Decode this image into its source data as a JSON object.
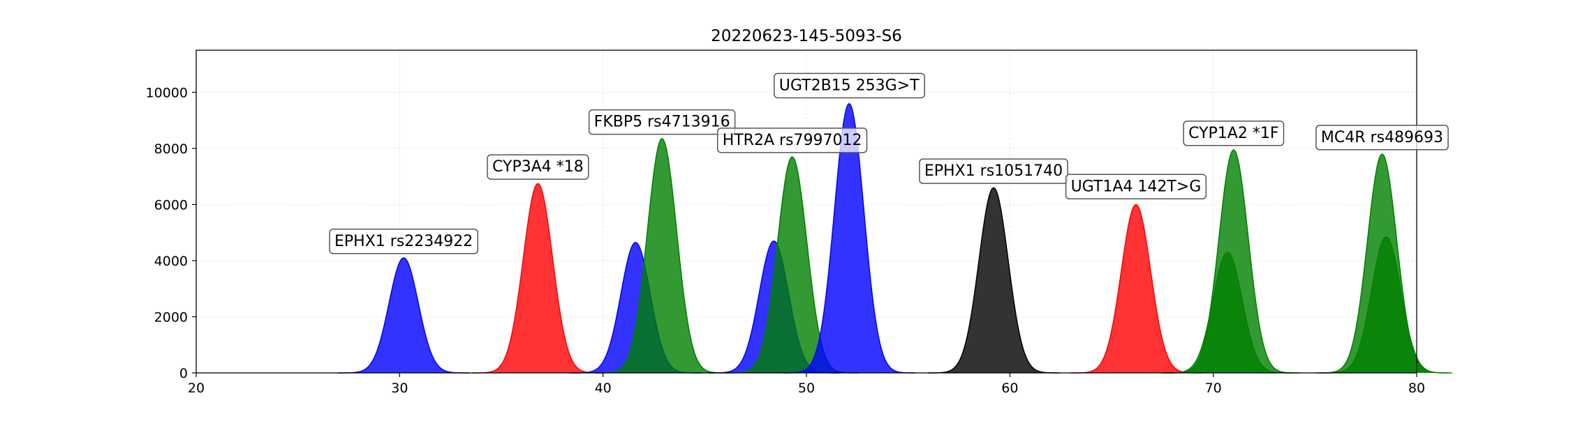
{
  "chart_data": {
    "type": "area",
    "title": "20220623-145-5093-S6",
    "xlabel": "",
    "ylabel": "",
    "xlim": [
      20,
      80
    ],
    "ylim": [
      0,
      11500
    ],
    "grid": true,
    "x_ticks": [
      20,
      30,
      40,
      50,
      60,
      70,
      80
    ],
    "y_ticks": [
      0,
      2000,
      4000,
      6000,
      8000,
      10000
    ],
    "colors": {
      "blue": "#0000ff",
      "red": "#ff0000",
      "green": "#008000",
      "black": "#000000"
    },
    "peaks": [
      {
        "center": 30.2,
        "height": 4100,
        "color": "blue"
      },
      {
        "center": 36.8,
        "height": 6750,
        "color": "red"
      },
      {
        "center": 41.6,
        "height": 4650,
        "color": "blue"
      },
      {
        "center": 42.9,
        "height": 8350,
        "color": "green"
      },
      {
        "center": 48.4,
        "height": 4700,
        "color": "blue"
      },
      {
        "center": 49.3,
        "height": 7700,
        "color": "green"
      },
      {
        "center": 52.1,
        "height": 9600,
        "color": "blue"
      },
      {
        "center": 59.2,
        "height": 6600,
        "color": "black"
      },
      {
        "center": 66.2,
        "height": 6000,
        "color": "red"
      },
      {
        "center": 70.7,
        "height": 4300,
        "color": "green"
      },
      {
        "center": 71.0,
        "height": 7950,
        "color": "green"
      },
      {
        "center": 78.3,
        "height": 7800,
        "color": "green"
      },
      {
        "center": 78.5,
        "height": 4850,
        "color": "green"
      }
    ],
    "annotations": [
      {
        "text": "EPHX1 rs2234922",
        "x": 30.2,
        "y": 4700
      },
      {
        "text": "CYP3A4 *18",
        "x": 36.8,
        "y": 7350
      },
      {
        "text": "FKBP5 rs4713916",
        "x": 42.9,
        "y": 8950
      },
      {
        "text": "HTR2A rs7997012",
        "x": 49.3,
        "y": 8300
      },
      {
        "text": "UGT2B15 253G>T",
        "x": 52.1,
        "y": 10250
      },
      {
        "text": "EPHX1 rs1051740",
        "x": 59.2,
        "y": 7200
      },
      {
        "text": "UGT1A4 142T>G",
        "x": 66.2,
        "y": 6650
      },
      {
        "text": "CYP1A2 *1F",
        "x": 71.0,
        "y": 8550
      },
      {
        "text": "MC4R rs489693",
        "x": 78.3,
        "y": 8400
      }
    ]
  }
}
